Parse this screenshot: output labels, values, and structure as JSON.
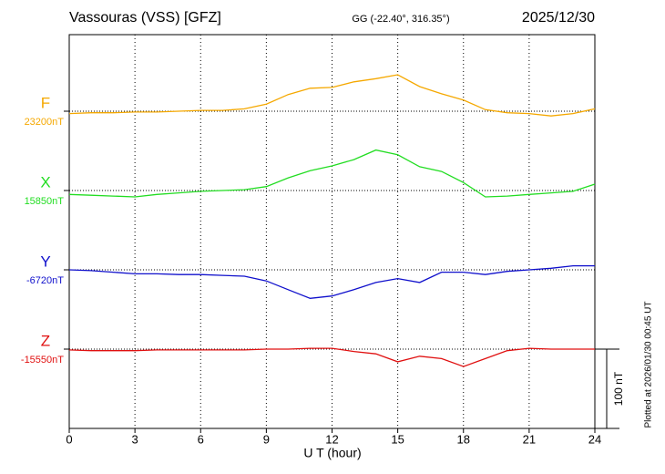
{
  "chart_data": {
    "type": "line",
    "title": "Vassouras (VSS)  [GFZ]",
    "subtitle": "GG (-22.40°, 316.35°)",
    "date": "2025/12/30",
    "x_label": "U T (hour)",
    "note": "Plotted at 2026/01/30 00:45 UT",
    "xlim": [
      0,
      24
    ],
    "xticks": [
      0,
      3,
      6,
      9,
      12,
      15,
      18,
      21,
      24
    ],
    "grid": true,
    "x": [
      0,
      1,
      2,
      3,
      4,
      5,
      6,
      7,
      8,
      9,
      10,
      11,
      12,
      13,
      14,
      15,
      16,
      17,
      18,
      19,
      20,
      21,
      22,
      23,
      24
    ],
    "scale_bar": {
      "value": 100,
      "label": "100 nT"
    },
    "series": [
      {
        "name": "F",
        "color": "#f5a800",
        "baseline": {
          "value": 23200,
          "label": "23200nT"
        },
        "values": [
          23197,
          23198,
          23198,
          23199,
          23199,
          23200,
          23201,
          23201,
          23203,
          23209,
          23221,
          23229,
          23230,
          23237,
          23241,
          23246,
          23231,
          23222,
          23214,
          23202,
          23198,
          23197,
          23194,
          23197,
          23203
        ]
      },
      {
        "name": "X",
        "color": "#22dd22",
        "baseline": {
          "value": 15850,
          "label": "15850nT"
        },
        "values": [
          15845,
          15844,
          15843,
          15842,
          15845,
          15847,
          15849,
          15850,
          15851,
          15855,
          15866,
          15875,
          15881,
          15889,
          15901,
          15895,
          15880,
          15874,
          15860,
          15842,
          15843,
          15845,
          15847,
          15849,
          15858
        ]
      },
      {
        "name": "Y",
        "color": "#1010cc",
        "baseline": {
          "value": -6720,
          "label": "-6720nT"
        },
        "values": [
          -6720,
          -6721,
          -6723,
          -6725,
          -6725,
          -6726,
          -6726,
          -6727,
          -6728,
          -6734,
          -6745,
          -6756,
          -6753,
          -6745,
          -6736,
          -6731,
          -6736,
          -6723,
          -6723,
          -6726,
          -6722,
          -6720,
          -6718,
          -6715,
          -6715
        ]
      },
      {
        "name": "Z",
        "color": "#e01010",
        "baseline": {
          "value": -15550,
          "label": "-15550nT"
        },
        "values": [
          -15551,
          -15552,
          -15552,
          -15552,
          -15551,
          -15551,
          -15551,
          -15551,
          -15551,
          -15550,
          -15550,
          -15549,
          -15549,
          -15553,
          -15556,
          -15566,
          -15559,
          -15562,
          -15572,
          -15562,
          -15552,
          -15549,
          -15550,
          -15550,
          -15550
        ]
      }
    ]
  }
}
